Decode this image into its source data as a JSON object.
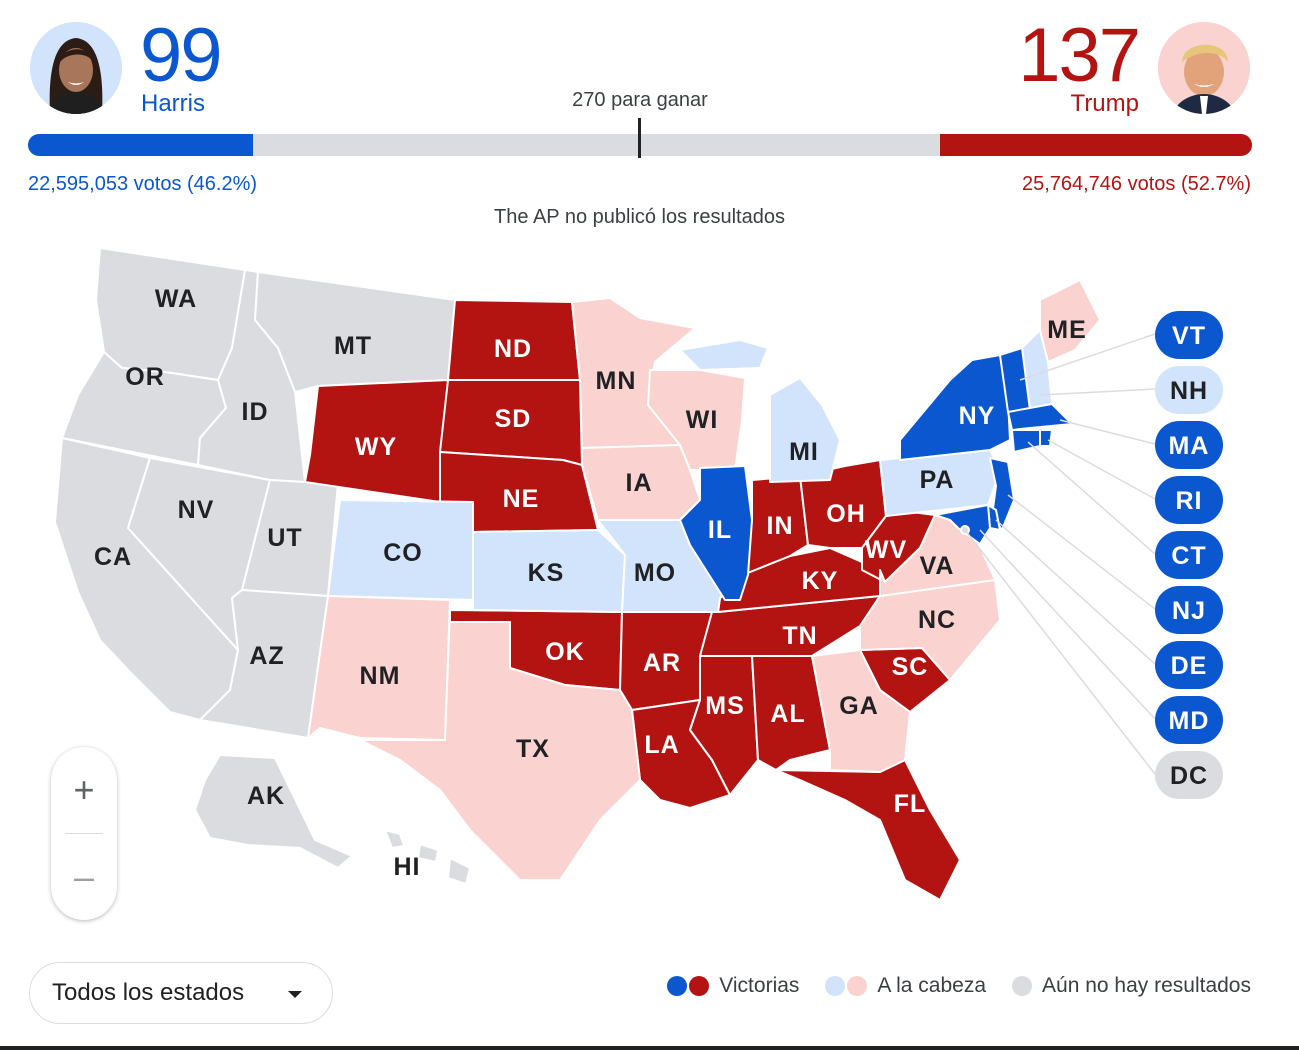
{
  "colors": {
    "dem_win": "#0b57d0",
    "rep_win": "#b31412",
    "dem_lead": "#d2e3fc",
    "rep_lead": "#fad2cf",
    "no_results": "#dadce0"
  },
  "candidates": {
    "harris": {
      "name": "Harris",
      "electoral_votes": "99",
      "popular_vote": "22,595,053 votos (46.2%)",
      "avatar_icon": "harris-portrait"
    },
    "trump": {
      "name": "Trump",
      "electoral_votes": "137",
      "popular_vote": "25,764,746 votos (52.7%)",
      "avatar_icon": "trump-portrait"
    }
  },
  "threshold": {
    "label": "270 para ganar",
    "value": 270,
    "total": 538
  },
  "note": "The AP no publicó los resultados",
  "states": [
    {
      "abbr": "WA",
      "status": "no_results"
    },
    {
      "abbr": "OR",
      "status": "no_results"
    },
    {
      "abbr": "CA",
      "status": "no_results"
    },
    {
      "abbr": "NV",
      "status": "no_results"
    },
    {
      "abbr": "ID",
      "status": "no_results"
    },
    {
      "abbr": "MT",
      "status": "no_results"
    },
    {
      "abbr": "UT",
      "status": "no_results"
    },
    {
      "abbr": "AZ",
      "status": "no_results"
    },
    {
      "abbr": "AK",
      "status": "no_results"
    },
    {
      "abbr": "HI",
      "status": "no_results"
    },
    {
      "abbr": "WY",
      "status": "rep_win"
    },
    {
      "abbr": "ND",
      "status": "rep_win"
    },
    {
      "abbr": "SD",
      "status": "rep_win"
    },
    {
      "abbr": "NE",
      "status": "rep_win"
    },
    {
      "abbr": "OK",
      "status": "rep_win"
    },
    {
      "abbr": "AR",
      "status": "rep_win"
    },
    {
      "abbr": "LA",
      "status": "rep_win"
    },
    {
      "abbr": "MS",
      "status": "rep_win"
    },
    {
      "abbr": "AL",
      "status": "rep_win"
    },
    {
      "abbr": "TN",
      "status": "rep_win"
    },
    {
      "abbr": "KY",
      "status": "rep_win"
    },
    {
      "abbr": "IN",
      "status": "rep_win"
    },
    {
      "abbr": "OH",
      "status": "rep_win"
    },
    {
      "abbr": "WV",
      "status": "rep_win"
    },
    {
      "abbr": "SC",
      "status": "rep_win"
    },
    {
      "abbr": "FL",
      "status": "rep_win"
    },
    {
      "abbr": "CO",
      "status": "dem_lead"
    },
    {
      "abbr": "KS",
      "status": "dem_lead"
    },
    {
      "abbr": "MO",
      "status": "dem_lead"
    },
    {
      "abbr": "MI",
      "status": "dem_lead"
    },
    {
      "abbr": "PA",
      "status": "dem_lead"
    },
    {
      "abbr": "NH",
      "status": "dem_lead"
    },
    {
      "abbr": "NM",
      "status": "rep_lead"
    },
    {
      "abbr": "TX",
      "status": "rep_lead"
    },
    {
      "abbr": "MN",
      "status": "rep_lead"
    },
    {
      "abbr": "WI",
      "status": "rep_lead"
    },
    {
      "abbr": "IA",
      "status": "rep_lead"
    },
    {
      "abbr": "GA",
      "status": "rep_lead"
    },
    {
      "abbr": "NC",
      "status": "rep_lead"
    },
    {
      "abbr": "VA",
      "status": "rep_lead"
    },
    {
      "abbr": "ME",
      "status": "rep_lead"
    },
    {
      "abbr": "IL",
      "status": "dem_win"
    },
    {
      "abbr": "NY",
      "status": "dem_win"
    },
    {
      "abbr": "VT",
      "status": "dem_win"
    },
    {
      "abbr": "MA",
      "status": "dem_win"
    },
    {
      "abbr": "RI",
      "status": "dem_win"
    },
    {
      "abbr": "CT",
      "status": "dem_win"
    },
    {
      "abbr": "NJ",
      "status": "dem_win"
    },
    {
      "abbr": "DE",
      "status": "dem_win"
    },
    {
      "abbr": "MD",
      "status": "dem_win"
    },
    {
      "abbr": "DC",
      "status": "no_results"
    }
  ],
  "zoom": {
    "in_label": "+",
    "out_label": "–"
  },
  "state_select": {
    "value": "Todos los estados"
  },
  "legend": {
    "wins": "Victorias",
    "leading": "A la cabeza",
    "none": "Aún no hay resultados"
  }
}
